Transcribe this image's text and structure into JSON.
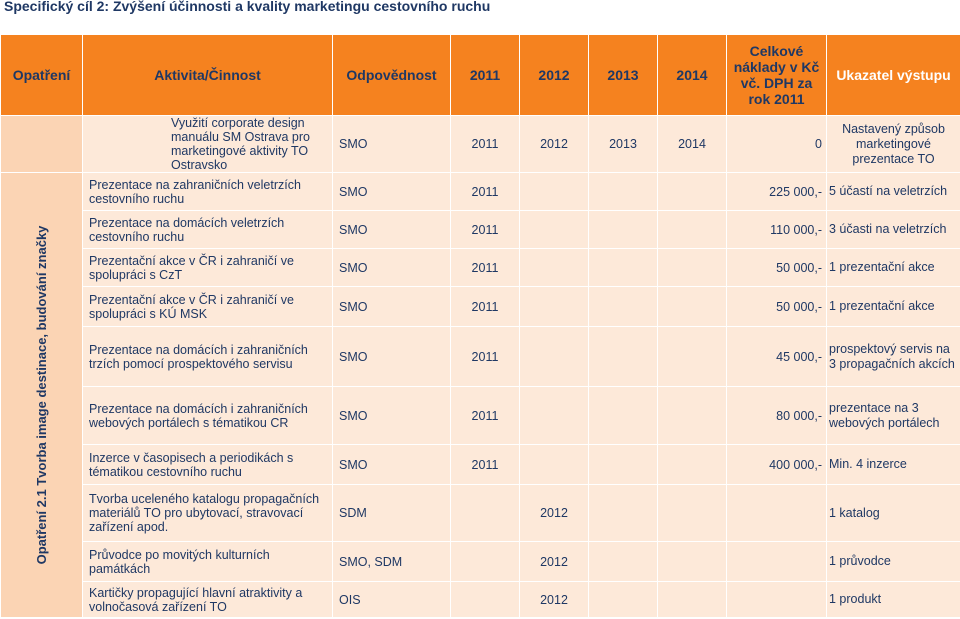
{
  "page_title": "Specifický cíl 2: Zvýšení účinnosti a kvality marketingu cestovního ruchu",
  "header": {
    "opatreni": "Opatření",
    "aktivita": "Aktivita/Činnost",
    "odpovednost": "Odpovědnost",
    "y2011": "2011",
    "y2012": "2012",
    "y2013": "2013",
    "y2014": "2014",
    "naklady": "Celkové náklady v Kč vč. DPH za rok 2011",
    "ukazatel": "Ukazatel výstupu"
  },
  "opatreni_label": "Opatření 2.1 Tvorba image destinace, budování značky",
  "rows": [
    {
      "activity": "Využití corporate design manuálu SM Ostrava pro marketingové aktivity TO Ostravsko",
      "resp": "SMO",
      "y2011": "2011",
      "y2012": "2012",
      "y2013": "2013",
      "y2014": "2014",
      "cost": "0",
      "indicator": "Nastavený způsob marketingové prezentace TO"
    },
    {
      "activity": "Prezentace na zahraničních veletrzích cestovního ruchu",
      "resp": "SMO",
      "y2011": "2011",
      "y2012": "",
      "y2013": "",
      "y2014": "",
      "cost": "225 000,-",
      "indicator": "5 účastí na veletrzích"
    },
    {
      "activity": "Prezentace na domácích veletrzích cestovního ruchu",
      "resp": "SMO",
      "y2011": "2011",
      "y2012": "",
      "y2013": "",
      "y2014": "",
      "cost": "110 000,-",
      "indicator": "3 účasti na veletrzích"
    },
    {
      "activity": "Prezentační akce v ČR i zahraničí ve spolupráci s CzT",
      "resp": "SMO",
      "y2011": "2011",
      "y2012": "",
      "y2013": "",
      "y2014": "",
      "cost": "50 000,-",
      "indicator": "1 prezentační akce"
    },
    {
      "activity": "Prezentační akce v ČR i zahraničí ve spolupráci s KÚ MSK",
      "resp": "SMO",
      "y2011": "2011",
      "y2012": "",
      "y2013": "",
      "y2014": "",
      "cost": "50 000,-",
      "indicator": "1 prezentační akce"
    },
    {
      "activity": "Prezentace na domácích i zahraničních trzích pomocí prospektového servisu",
      "resp": "SMO",
      "y2011": "2011",
      "y2012": "",
      "y2013": "",
      "y2014": "",
      "cost": "45 000,-",
      "indicator": "prospektový servis na 3 propagačních akcích"
    },
    {
      "activity": "Prezentace na domácích i zahraničních webových portálech s tématikou CR",
      "resp": "SMO",
      "y2011": "2011",
      "y2012": "",
      "y2013": "",
      "y2014": "",
      "cost": "80 000,-",
      "indicator": "prezentace na 3 webových portálech"
    },
    {
      "activity": "Inzerce v časopisech a periodikách s tématikou cestovního ruchu",
      "resp": "SMO",
      "y2011": "2011",
      "y2012": "",
      "y2013": "",
      "y2014": "",
      "cost": "400 000,-",
      "indicator": "Min. 4 inzerce"
    },
    {
      "activity": "Tvorba uceleného katalogu propagačních materiálů TO pro ubytovací, stravovací zařízení apod.",
      "resp": "SDM",
      "y2011": "",
      "y2012": "2012",
      "y2013": "",
      "y2014": "",
      "cost": "",
      "indicator": "1 katalog"
    },
    {
      "activity": "Průvodce po movitých kulturních památkách",
      "resp": "SMO, SDM",
      "y2011": "",
      "y2012": "2012",
      "y2013": "",
      "y2014": "",
      "cost": "",
      "indicator": "1 průvodce"
    },
    {
      "activity": "Kartičky propagující hlavní atraktivity a volnočasová zařízení TO",
      "resp": "OIS",
      "y2011": "",
      "y2012": "2012",
      "y2013": "",
      "y2014": "",
      "cost": "",
      "indicator": "1 produkt"
    }
  ]
}
